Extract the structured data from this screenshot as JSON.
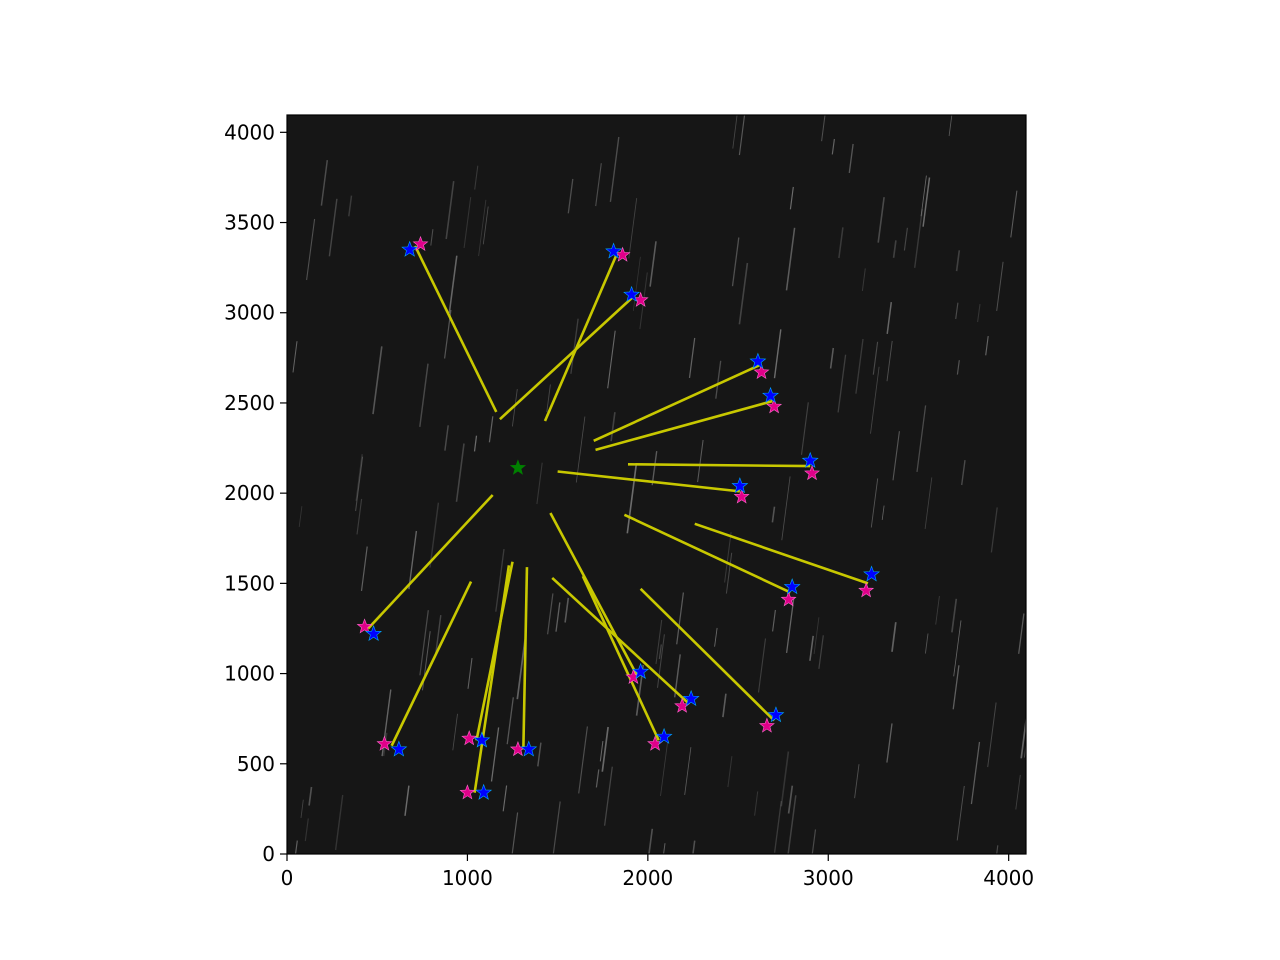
{
  "chart_data": {
    "type": "scatter",
    "title": "",
    "xlabel": "",
    "ylabel": "",
    "xlim": [
      0,
      4096
    ],
    "ylim": [
      0,
      4096
    ],
    "xticks": [
      0,
      1000,
      2000,
      3000,
      4000
    ],
    "yticks": [
      0,
      500,
      1000,
      1500,
      2000,
      2500,
      3000,
      3500,
      4000
    ],
    "xtick_labels": [
      "0",
      "1000",
      "2000",
      "3000",
      "4000"
    ],
    "ytick_labels": [
      "0",
      "500",
      "1000",
      "1500",
      "2000",
      "2500",
      "3000",
      "3500",
      "4000"
    ],
    "grid": false,
    "legend": "none",
    "background": "star-field-image",
    "colors": {
      "background": "#161616",
      "detected": "#0000ff",
      "catalog": "#e0008a",
      "center": "#008000",
      "vector": "#c8c800",
      "streak": "#8a8a8a"
    },
    "center": [
      1280,
      2140
    ],
    "detected_points": [
      [
        680,
        3350
      ],
      [
        1810,
        3340
      ],
      [
        1910,
        3100
      ],
      [
        2610,
        2730
      ],
      [
        2680,
        2540
      ],
      [
        2900,
        2180
      ],
      [
        2510,
        2040
      ],
      [
        3240,
        1550
      ],
      [
        2800,
        1480
      ],
      [
        480,
        1220
      ],
      [
        1960,
        1010
      ],
      [
        2240,
        860
      ],
      [
        2710,
        770
      ],
      [
        2090,
        650
      ],
      [
        1080,
        630
      ],
      [
        1340,
        580
      ],
      [
        620,
        580
      ],
      [
        1090,
        340
      ]
    ],
    "catalog_points": [
      [
        740,
        3380
      ],
      [
        1860,
        3320
      ],
      [
        1960,
        3070
      ],
      [
        2630,
        2670
      ],
      [
        2700,
        2480
      ],
      [
        2910,
        2110
      ],
      [
        2520,
        1980
      ],
      [
        3210,
        1460
      ],
      [
        2780,
        1410
      ],
      [
        430,
        1260
      ],
      [
        1920,
        980
      ],
      [
        2190,
        820
      ],
      [
        2660,
        710
      ],
      [
        2040,
        610
      ],
      [
        1010,
        640
      ],
      [
        1280,
        580
      ],
      [
        540,
        610
      ],
      [
        1000,
        340
      ]
    ],
    "vectors": [
      [
        [
          1160,
          2450
        ],
        [
          710,
          3370
        ]
      ],
      [
        [
          1180,
          2410
        ],
        [
          1920,
          3090
        ]
      ],
      [
        [
          1430,
          2400
        ],
        [
          1830,
          3330
        ]
      ],
      [
        [
          1700,
          2290
        ],
        [
          2620,
          2710
        ]
      ],
      [
        [
          1710,
          2240
        ],
        [
          2690,
          2510
        ]
      ],
      [
        [
          1890,
          2160
        ],
        [
          2900,
          2150
        ]
      ],
      [
        [
          1500,
          2120
        ],
        [
          2510,
          2010
        ]
      ],
      [
        [
          2260,
          1830
        ],
        [
          3220,
          1500
        ]
      ],
      [
        [
          1870,
          1880
        ],
        [
          2790,
          1450
        ]
      ],
      [
        [
          1140,
          1990
        ],
        [
          450,
          1250
        ]
      ],
      [
        [
          1460,
          1890
        ],
        [
          1940,
          990
        ]
      ],
      [
        [
          1470,
          1530
        ],
        [
          2220,
          840
        ]
      ],
      [
        [
          1960,
          1470
        ],
        [
          2700,
          740
        ]
      ],
      [
        [
          1640,
          1540
        ],
        [
          2060,
          630
        ]
      ],
      [
        [
          1250,
          1620
        ],
        [
          1050,
          630
        ]
      ],
      [
        [
          1330,
          1590
        ],
        [
          1310,
          580
        ]
      ],
      [
        [
          1020,
          1510
        ],
        [
          580,
          600
        ]
      ],
      [
        [
          1230,
          1600
        ],
        [
          1040,
          340
        ]
      ]
    ]
  }
}
